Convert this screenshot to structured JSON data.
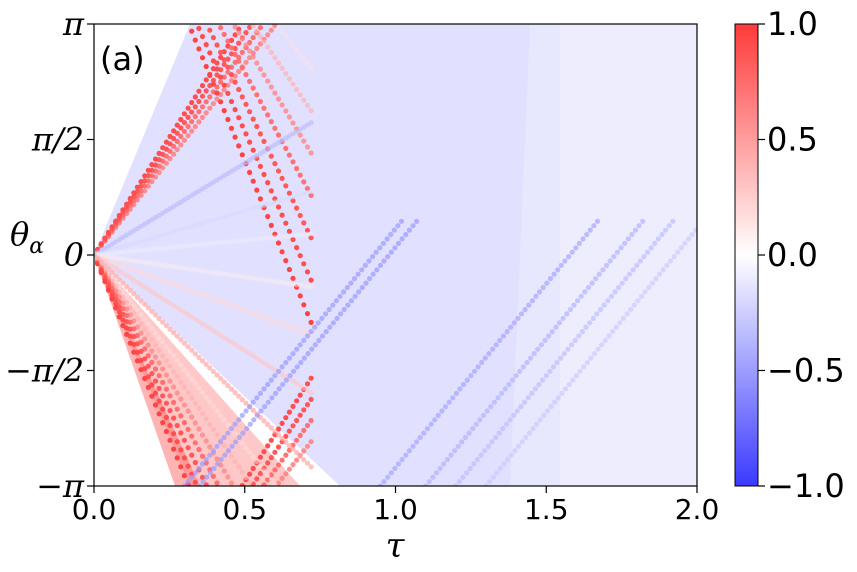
{
  "chart_data": {
    "type": "scatter",
    "panel_label": "(a)",
    "xlabel": "τ",
    "ylabel": "θ",
    "ylabel_subscript": "α",
    "xlim": [
      0.0,
      2.0
    ],
    "ylim": [
      -3.14159,
      3.14159
    ],
    "x_ticks": [
      {
        "value": 0.0,
        "label": "0.0"
      },
      {
        "value": 0.5,
        "label": "0.5"
      },
      {
        "value": 1.0,
        "label": "1.0"
      },
      {
        "value": 1.5,
        "label": "1.5"
      },
      {
        "value": 2.0,
        "label": "2.0"
      }
    ],
    "y_ticks": [
      {
        "value": -3.14159,
        "label": "−π"
      },
      {
        "value": -1.5708,
        "label": "−π/2"
      },
      {
        "value": 0,
        "label": "0"
      },
      {
        "value": 1.5708,
        "label": "π/2"
      },
      {
        "value": 3.14159,
        "label": "π"
      }
    ],
    "colorbar": {
      "min": -1.0,
      "max": 1.0,
      "colormap": "bwr",
      "low_color": "#3a3aff",
      "mid_color": "#ffffff",
      "high_color": "#ff3a3a",
      "ticks": [
        {
          "value": 1.0,
          "label": "1.0"
        },
        {
          "value": 0.5,
          "label": "0.5"
        },
        {
          "value": 0.0,
          "label": "0.0"
        },
        {
          "value": -0.5,
          "label": "−0.5"
        },
        {
          "value": -1.0,
          "label": "−1.0"
        }
      ]
    },
    "series": [
      {
        "slope": 5.2,
        "color_value": 0.65
      },
      {
        "slope": 5.6,
        "color_value": 0.75
      },
      {
        "slope": 6.0,
        "color_value": 0.85
      },
      {
        "slope": 6.4,
        "color_value": 0.9
      },
      {
        "slope": -5.2,
        "color_value": 0.15
      },
      {
        "slope": -6.0,
        "color_value": 0.4
      },
      {
        "slope": -6.8,
        "color_value": 0.6
      },
      {
        "slope": -7.6,
        "color_value": 0.75
      },
      {
        "slope": -8.4,
        "color_value": 0.85
      },
      {
        "slope": -9.2,
        "color_value": 0.9
      },
      {
        "slope": -10.0,
        "color_value": 0.95
      },
      {
        "slope": 2.5,
        "color_value": -0.35
      },
      {
        "slope": 1.2,
        "color_value": -0.2
      },
      {
        "slope": 0.4,
        "color_value": -0.08
      },
      {
        "slope": -0.6,
        "color_value": 0.08
      },
      {
        "slope": -1.5,
        "color_value": 0.2
      },
      {
        "slope": -2.6,
        "color_value": 0.3
      },
      {
        "slope": -4.0,
        "color_value": 0.45
      },
      {
        "x_start": 0.3,
        "slope": 5.0,
        "color_value": -0.5
      },
      {
        "x_start": 0.35,
        "slope": 5.0,
        "color_value": -0.5
      },
      {
        "x_start": 0.95,
        "slope": 5.0,
        "color_value": -0.45
      },
      {
        "x_start": 1.1,
        "slope": 5.0,
        "color_value": -0.4
      },
      {
        "x_start": 1.2,
        "slope": 5.0,
        "color_value": -0.35
      },
      {
        "x_start": 1.3,
        "slope": 5.0,
        "color_value": -0.3
      }
    ]
  }
}
